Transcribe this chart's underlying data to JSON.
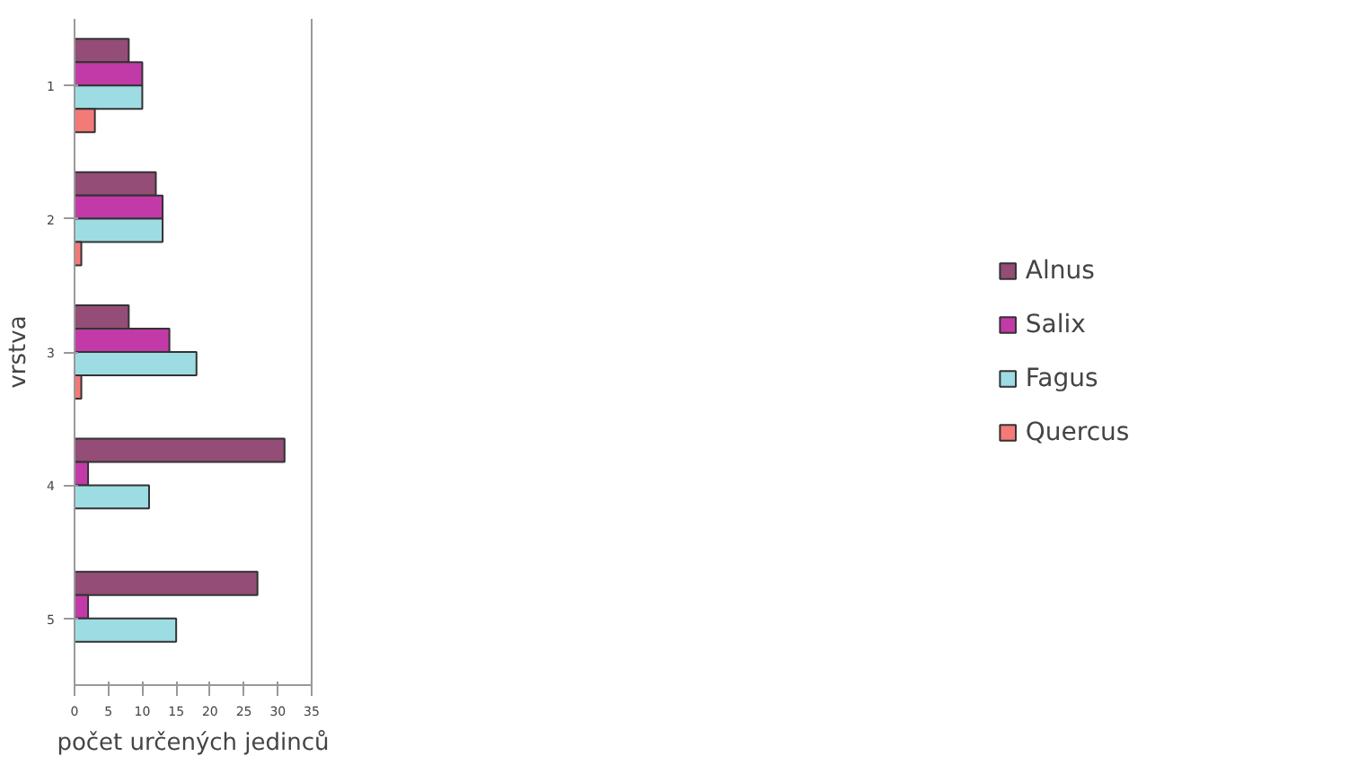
{
  "chart_data": {
    "type": "bar",
    "orientation": "horizontal",
    "xlabel": "počet určených jedinců",
    "ylabel": "vrstva",
    "categories": [
      "1",
      "2",
      "3",
      "4",
      "5"
    ],
    "series": [
      {
        "name": "Alnus",
        "color": "#934d76",
        "values": [
          8,
          12,
          8,
          31,
          27
        ]
      },
      {
        "name": "Salix",
        "color": "#c23aa8",
        "values": [
          10,
          13,
          14,
          2,
          2
        ]
      },
      {
        "name": "Fagus",
        "color": "#9edce4",
        "values": [
          10,
          13,
          18,
          11,
          15
        ]
      },
      {
        "name": "Quercus",
        "color": "#f47a78",
        "values": [
          3,
          1,
          1,
          null,
          null
        ]
      }
    ],
    "xlim": [
      0,
      35
    ],
    "xticks": [
      0,
      5,
      10,
      15,
      20,
      25,
      30,
      35
    ],
    "grid": false,
    "legend": "right"
  }
}
